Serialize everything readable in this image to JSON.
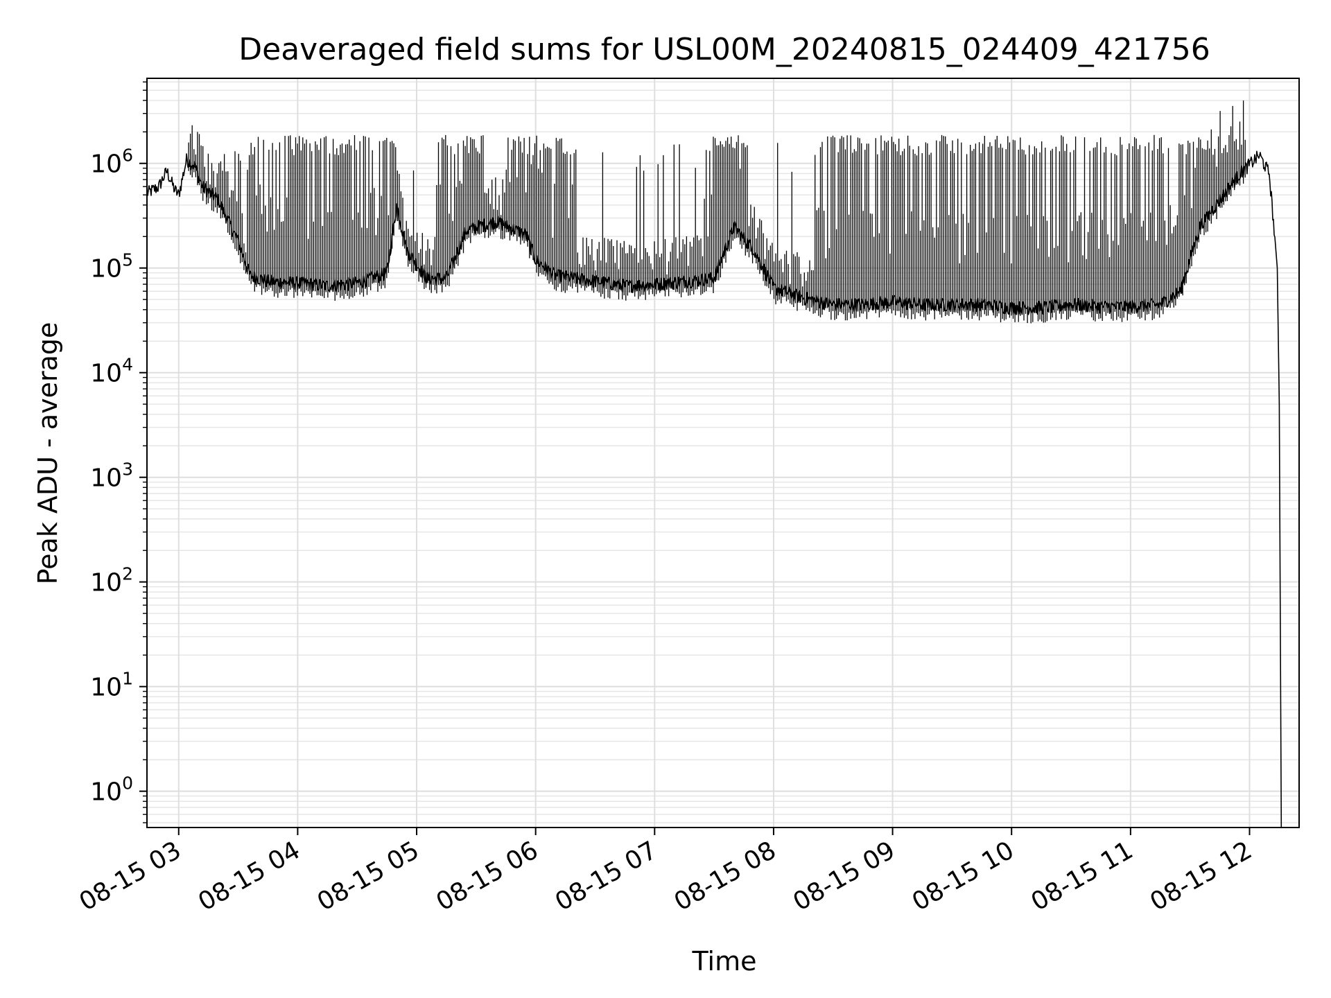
{
  "chart_data": {
    "type": "line",
    "title": "Deaveraged field sums for USL00M_20240815_024409_421756",
    "xlabel": "Time",
    "ylabel": "Peak ADU - average",
    "x_scale": "time",
    "y_scale": "log",
    "xlim": [
      "2024-08-15 02:44",
      "2024-08-15 12:25"
    ],
    "ylim": [
      0.45,
      6500000
    ],
    "x_ticks": [
      {
        "t": "2024-08-15 03:00",
        "label": "08-15 03"
      },
      {
        "t": "2024-08-15 04:00",
        "label": "08-15 04"
      },
      {
        "t": "2024-08-15 05:00",
        "label": "08-15 05"
      },
      {
        "t": "2024-08-15 06:00",
        "label": "08-15 06"
      },
      {
        "t": "2024-08-15 07:00",
        "label": "08-15 07"
      },
      {
        "t": "2024-08-15 08:00",
        "label": "08-15 08"
      },
      {
        "t": "2024-08-15 09:00",
        "label": "08-15 09"
      },
      {
        "t": "2024-08-15 10:00",
        "label": "08-15 10"
      },
      {
        "t": "2024-08-15 11:00",
        "label": "08-15 11"
      },
      {
        "t": "2024-08-15 12:00",
        "label": "08-15 12"
      }
    ],
    "y_ticks": [
      {
        "value": 1,
        "base": "10",
        "exp": "0"
      },
      {
        "value": 10,
        "base": "10",
        "exp": "1"
      },
      {
        "value": 100,
        "base": "10",
        "exp": "2"
      },
      {
        "value": 1000,
        "base": "10",
        "exp": "3"
      },
      {
        "value": 10000,
        "base": "10",
        "exp": "4"
      },
      {
        "value": 100000,
        "base": "10",
        "exp": "5"
      },
      {
        "value": 1000000,
        "base": "10",
        "exp": "6"
      }
    ],
    "grid": true,
    "grid_minor": true,
    "series": [
      {
        "color": "#000000",
        "points": [
          [
            "2024-08-15 02:44",
            520000
          ],
          [
            "2024-08-15 02:50",
            600000
          ],
          [
            "2024-08-15 02:54",
            850000
          ],
          [
            "2024-08-15 02:58",
            560000
          ],
          [
            "2024-08-15 03:00",
            500000
          ],
          [
            "2024-08-15 03:04",
            1100000
          ],
          [
            "2024-08-15 03:08",
            950000
          ],
          [
            "2024-08-15 03:12",
            600000
          ],
          [
            "2024-08-15 03:20",
            450000
          ],
          [
            "2024-08-15 03:30",
            180000
          ],
          [
            "2024-08-15 03:36",
            85000
          ],
          [
            "2024-08-15 03:45",
            75000
          ],
          [
            "2024-08-15 04:00",
            72000
          ],
          [
            "2024-08-15 04:15",
            68000
          ],
          [
            "2024-08-15 04:30",
            72000
          ],
          [
            "2024-08-15 04:45",
            90000
          ],
          [
            "2024-08-15 04:50",
            400000
          ],
          [
            "2024-08-15 04:55",
            150000
          ],
          [
            "2024-08-15 05:05",
            80000
          ],
          [
            "2024-08-15 05:15",
            80000
          ],
          [
            "2024-08-15 05:25",
            230000
          ],
          [
            "2024-08-15 05:40",
            280000
          ],
          [
            "2024-08-15 05:55",
            210000
          ],
          [
            "2024-08-15 06:00",
            120000
          ],
          [
            "2024-08-15 06:10",
            85000
          ],
          [
            "2024-08-15 06:30",
            75000
          ],
          [
            "2024-08-15 06:45",
            68000
          ],
          [
            "2024-08-15 07:00",
            70000
          ],
          [
            "2024-08-15 07:15",
            75000
          ],
          [
            "2024-08-15 07:30",
            80000
          ],
          [
            "2024-08-15 07:40",
            250000
          ],
          [
            "2024-08-15 07:50",
            150000
          ],
          [
            "2024-08-15 08:00",
            65000
          ],
          [
            "2024-08-15 08:15",
            52000
          ],
          [
            "2024-08-15 08:30",
            45000
          ],
          [
            "2024-08-15 08:45",
            45000
          ],
          [
            "2024-08-15 09:00",
            48000
          ],
          [
            "2024-08-15 09:15",
            45000
          ],
          [
            "2024-08-15 09:30",
            45000
          ],
          [
            "2024-08-15 09:45",
            45000
          ],
          [
            "2024-08-15 10:00",
            42000
          ],
          [
            "2024-08-15 10:15",
            42000
          ],
          [
            "2024-08-15 10:30",
            45000
          ],
          [
            "2024-08-15 10:45",
            43000
          ],
          [
            "2024-08-15 11:00",
            43000
          ],
          [
            "2024-08-15 11:15",
            45000
          ],
          [
            "2024-08-15 11:25",
            60000
          ],
          [
            "2024-08-15 11:35",
            250000
          ],
          [
            "2024-08-15 11:45",
            450000
          ],
          [
            "2024-08-15 11:55",
            800000
          ],
          [
            "2024-08-15 12:05",
            1200000
          ],
          [
            "2024-08-15 12:10",
            800000
          ],
          [
            "2024-08-15 12:14",
            100000
          ],
          [
            "2024-08-15 12:15",
            5000
          ],
          [
            "2024-08-15 12:16",
            0.45
          ]
        ]
      }
    ]
  }
}
